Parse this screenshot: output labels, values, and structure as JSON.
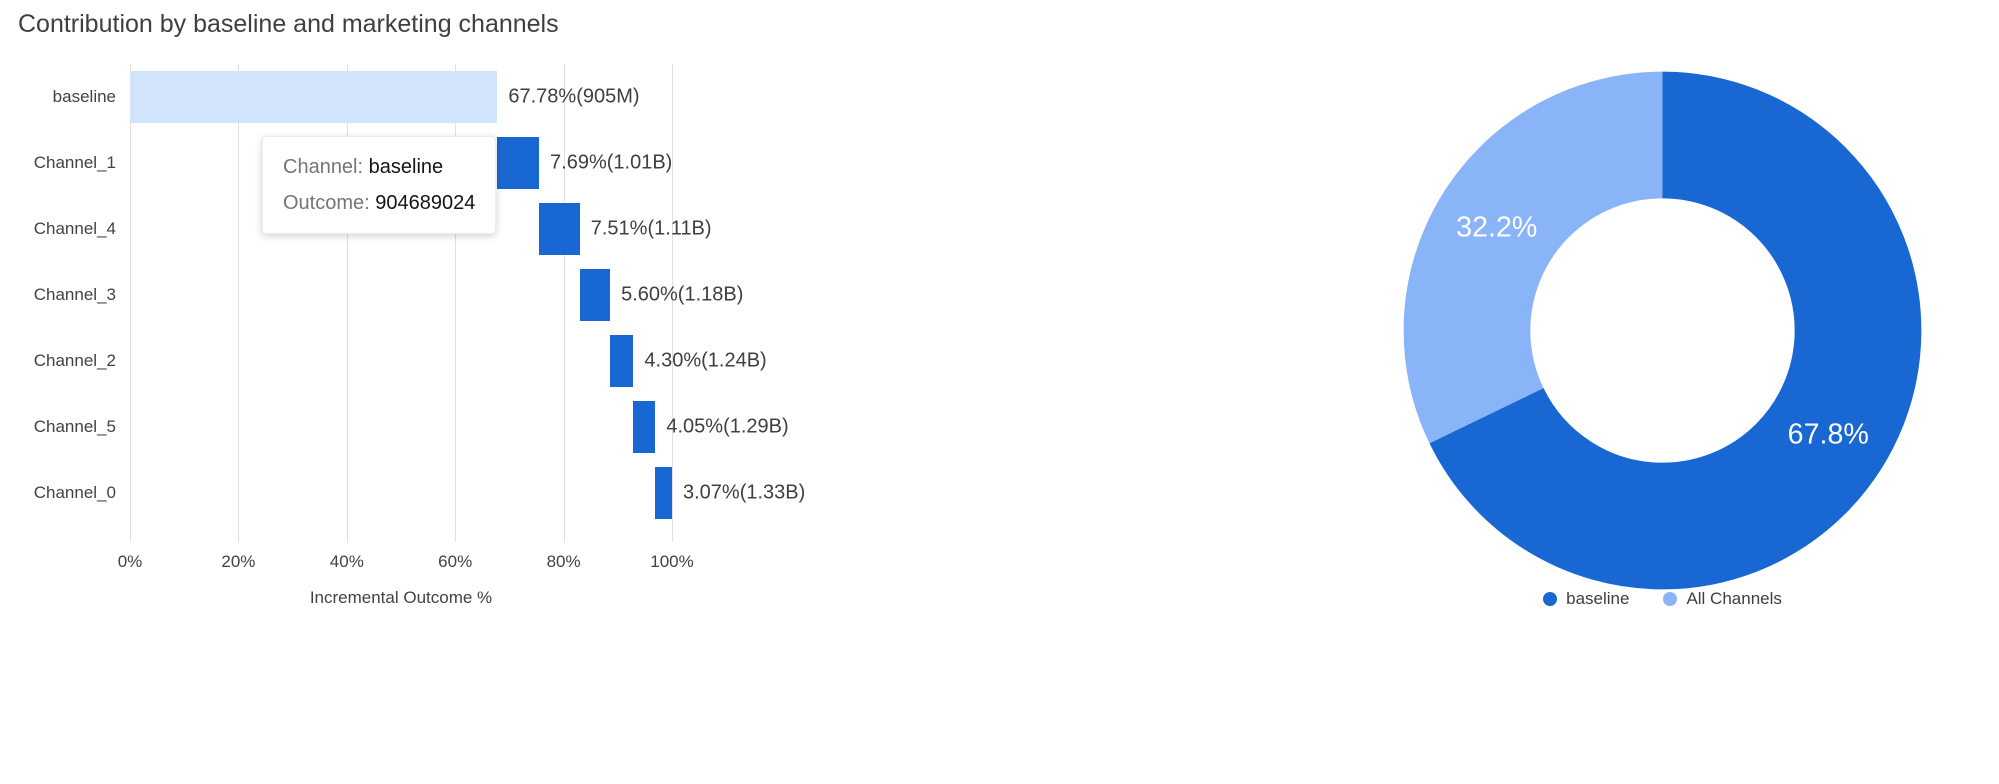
{
  "title": "Contribution by baseline and marketing channels",
  "colors": {
    "primary_blue": "#1967d2",
    "light_blue": "#8ab4f8",
    "baseline_fill": "#d2e3fc",
    "grid": "#e0e0e0",
    "text_dark": "#3c4043",
    "text_muted": "#757575"
  },
  "tooltip": {
    "channel_label": "Channel:",
    "channel_value": "baseline",
    "outcome_label": "Outcome:",
    "outcome_value": "904689024"
  },
  "chart_data": [
    {
      "type": "bar",
      "variant": "horizontal-waterfall",
      "title": "Contribution by baseline and marketing channels",
      "xlabel": "Incremental Outcome %",
      "xlim": [
        0,
        100
      ],
      "grid": true,
      "x_ticks": [
        "0%",
        "20%",
        "40%",
        "60%",
        "80%",
        "100%"
      ],
      "x_tick_values": [
        0,
        20,
        40,
        60,
        80,
        100
      ],
      "categories": [
        "baseline",
        "Channel_1",
        "Channel_4",
        "Channel_3",
        "Channel_2",
        "Channel_5",
        "Channel_0"
      ],
      "bars": [
        {
          "label": "baseline",
          "start": 0,
          "value": 67.78,
          "annotation": "67.78%(905M)",
          "color": "#d2e3fc"
        },
        {
          "label": "Channel_1",
          "start": 67.78,
          "value": 7.69,
          "annotation": "7.69%(1.01B)",
          "color": "#1967d2"
        },
        {
          "label": "Channel_4",
          "start": 75.47,
          "value": 7.51,
          "annotation": "7.51%(1.11B)",
          "color": "#1967d2"
        },
        {
          "label": "Channel_3",
          "start": 82.98,
          "value": 5.6,
          "annotation": "5.60%(1.18B)",
          "color": "#1967d2"
        },
        {
          "label": "Channel_2",
          "start": 88.58,
          "value": 4.3,
          "annotation": "4.30%(1.24B)",
          "color": "#1967d2"
        },
        {
          "label": "Channel_5",
          "start": 92.88,
          "value": 4.05,
          "annotation": "4.05%(1.29B)",
          "color": "#1967d2"
        },
        {
          "label": "Channel_0",
          "start": 96.93,
          "value": 3.07,
          "annotation": "3.07%(1.33B)",
          "color": "#1967d2"
        }
      ]
    },
    {
      "type": "pie",
      "variant": "donut",
      "start_angle_deg": 0,
      "direction": "clockwise",
      "legend_position": "bottom",
      "slices": [
        {
          "label": "baseline",
          "value": 67.8,
          "display": "67.8%",
          "color": "#1967d2"
        },
        {
          "label": "All Channels",
          "value": 32.2,
          "display": "32.2%",
          "color": "#8ab4f8"
        }
      ]
    }
  ]
}
